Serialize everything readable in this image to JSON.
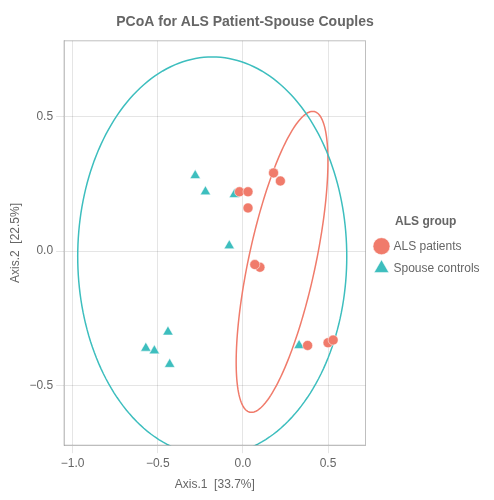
{
  "chart_data": {
    "type": "scatter",
    "title": "PCoA for ALS Patient-Spouse Couples",
    "xlabel": "Axis.1  [33.7%]",
    "ylabel": "Axis.2  [22.5%]",
    "xlim": [
      -1.05,
      0.72
    ],
    "ylim": [
      -0.72,
      0.78
    ],
    "xticks": [
      {
        "value": -1.0,
        "label": "−1.0"
      },
      {
        "value": -0.5,
        "label": "−0.5"
      },
      {
        "value": 0.0,
        "label": "0.0"
      },
      {
        "value": 0.5,
        "label": "0.5"
      }
    ],
    "yticks": [
      {
        "value": -0.5,
        "label": "−0.5"
      },
      {
        "value": 0.0,
        "label": "0.0"
      },
      {
        "value": 0.5,
        "label": "0.5"
      }
    ],
    "grid": true,
    "legend": "right",
    "legend_title": "ALS group",
    "series": [
      {
        "name": "ALS patients",
        "color": "#F07B6B",
        "marker": "circle",
        "x": [
          -0.02,
          0.03,
          0.18,
          0.22,
          0.03,
          0.1,
          0.07,
          0.38,
          0.5,
          0.53
        ],
        "y": [
          0.22,
          0.22,
          0.29,
          0.26,
          0.16,
          -0.06,
          -0.05,
          -0.35,
          -0.34,
          -0.33
        ],
        "ellipse": {
          "center_x": 0.23,
          "center_y": -0.04,
          "width": 0.38,
          "height": 1.18,
          "angle": -20
        }
      },
      {
        "name": "Spouse controls",
        "color": "#3DBEBE",
        "marker": "triangle",
        "x": [
          -0.28,
          -0.22,
          -0.05,
          -0.08,
          -0.52,
          -0.57,
          -0.44,
          -0.43,
          0.33
        ],
        "y": [
          0.28,
          0.22,
          0.21,
          0.02,
          -0.37,
          -0.36,
          -0.3,
          -0.42,
          -0.35
        ],
        "ellipse": {
          "center_x": -0.18,
          "center_y": -0.02,
          "width": 1.58,
          "height": 1.48,
          "angle": 0
        }
      }
    ]
  }
}
